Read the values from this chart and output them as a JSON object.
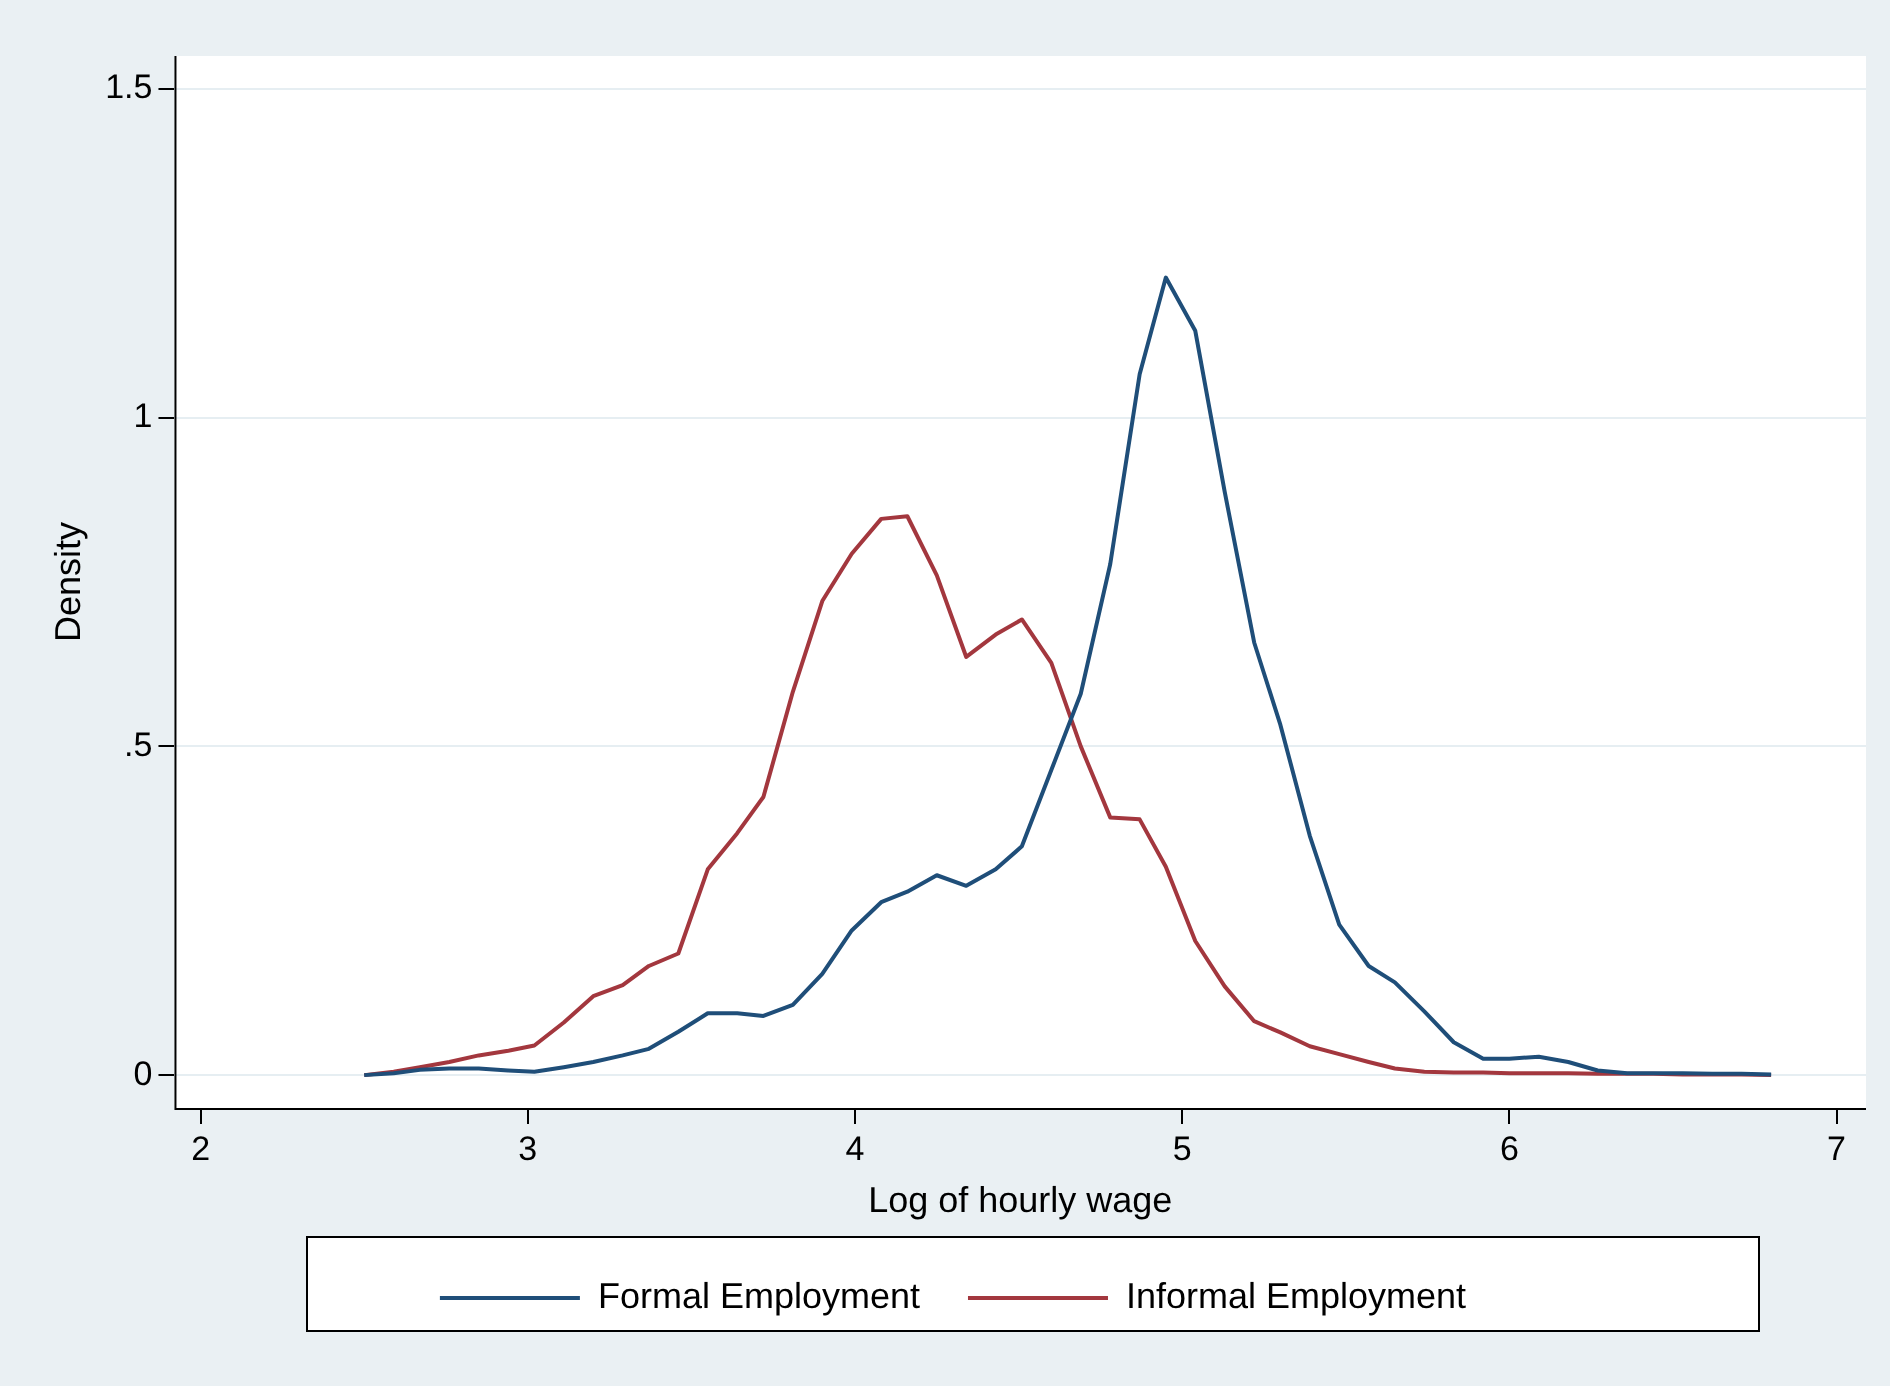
{
  "chart_data": {
    "type": "line",
    "xlabel": "Log of hourly wage",
    "ylabel": "Density",
    "x": [
      2.5,
      2.59,
      2.67,
      2.76,
      2.85,
      2.94,
      3.02,
      3.11,
      3.2,
      3.29,
      3.37,
      3.46,
      3.55,
      3.64,
      3.72,
      3.81,
      3.9,
      3.99,
      4.08,
      4.16,
      4.25,
      4.34,
      4.43,
      4.51,
      4.6,
      4.69,
      4.78,
      4.87,
      4.95,
      5.04,
      5.13,
      5.22,
      5.3,
      5.39,
      5.48,
      5.57,
      5.65,
      5.74,
      5.83,
      5.92,
      6.0,
      6.09,
      6.18,
      6.27,
      6.36,
      6.44,
      6.53,
      6.62,
      6.71,
      6.8
    ],
    "series": [
      {
        "name": "Formal Employment",
        "color": "#1f4e79",
        "values": [
          0,
          0.003,
          0.008,
          0.01,
          0.01,
          0.007,
          0.005,
          0.012,
          0.02,
          0.03,
          0.04,
          0.066,
          0.094,
          0.094,
          0.09,
          0.107,
          0.154,
          0.22,
          0.263,
          0.279,
          0.304,
          0.288,
          0.313,
          0.348,
          0.464,
          0.58,
          0.777,
          1.066,
          1.213,
          1.132,
          0.887,
          0.658,
          0.533,
          0.364,
          0.229,
          0.166,
          0.141,
          0.097,
          0.05,
          0.025,
          0.025,
          0.028,
          0.02,
          0.007,
          0.003,
          0.003,
          0.003,
          0.002,
          0.002,
          0.001
        ]
      },
      {
        "name": "Informal Employment",
        "color": "#a3373e",
        "values": [
          0,
          0.005,
          0.012,
          0.02,
          0.03,
          0.037,
          0.045,
          0.08,
          0.12,
          0.137,
          0.166,
          0.185,
          0.313,
          0.368,
          0.423,
          0.583,
          0.721,
          0.793,
          0.846,
          0.85,
          0.76,
          0.636,
          0.67,
          0.693,
          0.627,
          0.5,
          0.392,
          0.389,
          0.317,
          0.204,
          0.135,
          0.082,
          0.065,
          0.044,
          0.032,
          0.02,
          0.01,
          0.005,
          0.004,
          0.004,
          0.003,
          0.003,
          0.003,
          0.002,
          0.002,
          0.002,
          0.001,
          0.001,
          0.001,
          0
        ]
      }
    ],
    "xlim": [
      1.92,
      7.09
    ],
    "xticks": [
      2,
      3,
      4,
      5,
      6,
      7
    ],
    "ylim": [
      -0.05,
      1.55
    ],
    "yticks": [
      0,
      {
        "value": 0.5,
        "label": ".5"
      },
      1,
      1.5
    ],
    "grid": "y",
    "legend": "bottom",
    "marker": "none",
    "line_style": "solid"
  }
}
